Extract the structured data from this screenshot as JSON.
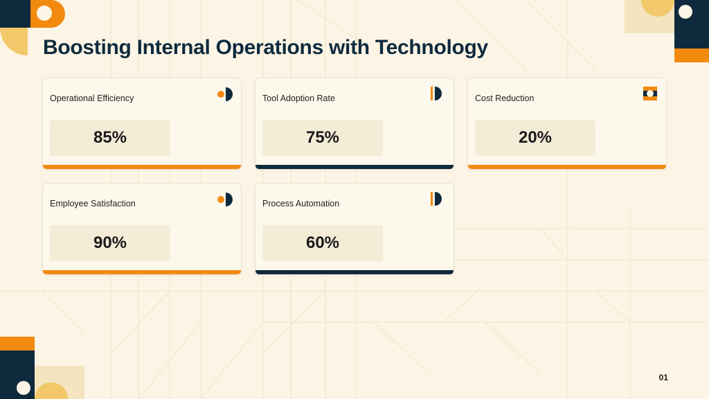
{
  "slide": {
    "title": "Boosting Internal Operations with Technology",
    "page_number": "01"
  },
  "colors": {
    "orange": "#f28a10",
    "navy": "#0f2a3d",
    "gold": "#f2c86a",
    "background": "#fcf5e6"
  },
  "cards": [
    {
      "label": "Operational Efficiency",
      "value": "85%",
      "accent": "orange",
      "icon": "half-circle-icon"
    },
    {
      "label": "Tool Adoption Rate",
      "value": "75%",
      "accent": "navy",
      "icon": "bar-half-circle-icon"
    },
    {
      "label": "Cost Reduction",
      "value": "20%",
      "accent": "orange",
      "icon": "ring-icon"
    },
    {
      "label": "Employee Satisfaction",
      "value": "90%",
      "accent": "orange",
      "icon": "half-circle-icon"
    },
    {
      "label": "Process Automation",
      "value": "60%",
      "accent": "navy",
      "icon": "bar-half-circle-icon"
    }
  ]
}
